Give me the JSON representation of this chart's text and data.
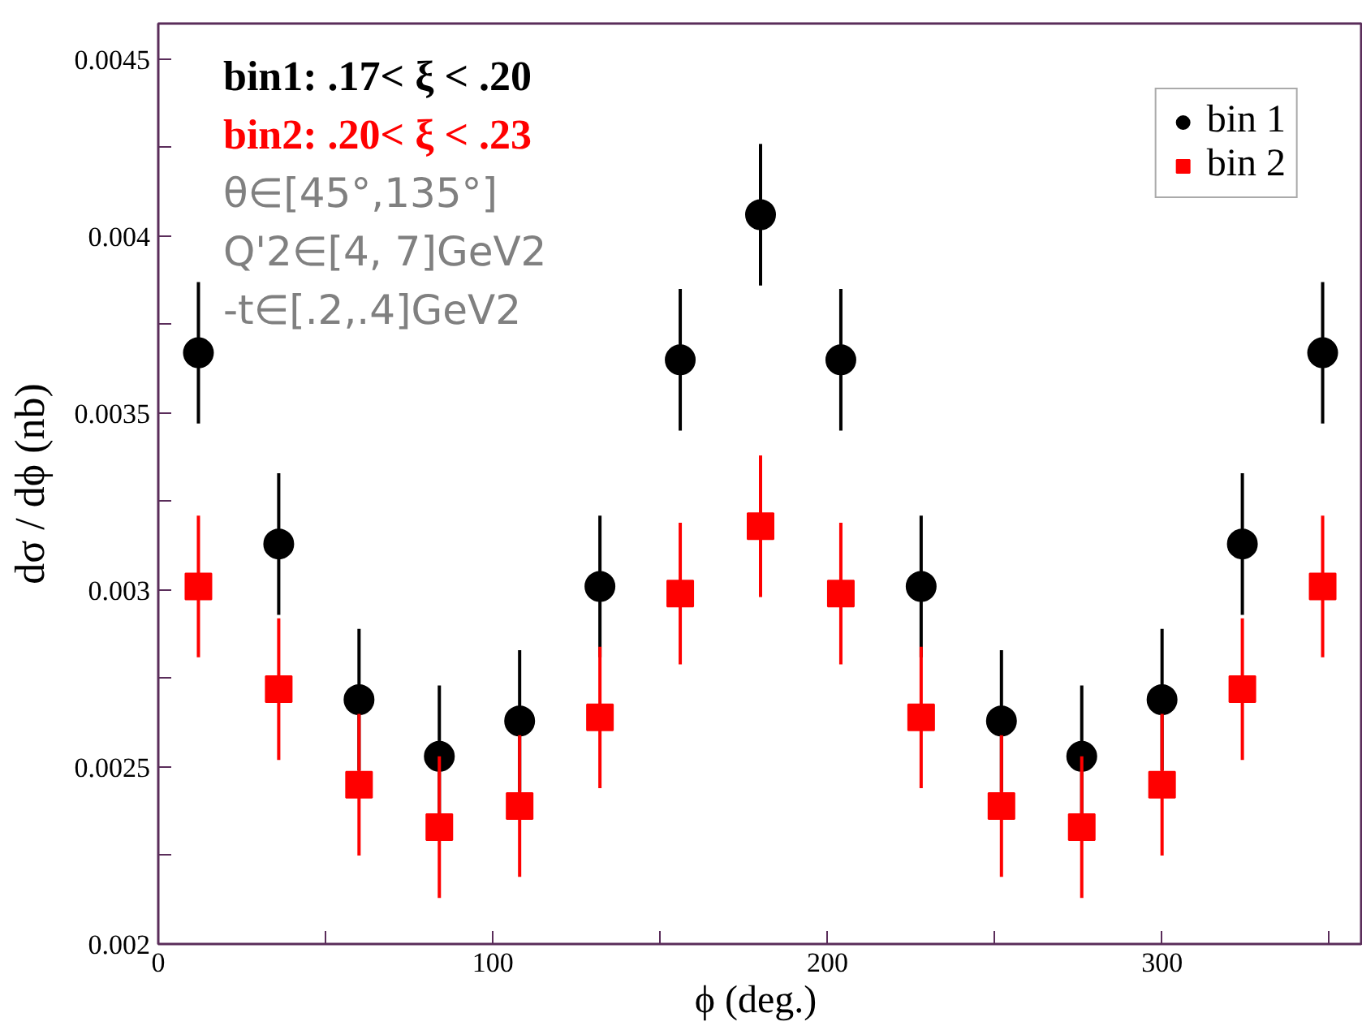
{
  "chart_data": {
    "type": "scatter",
    "xlabel": "ϕ  (deg.)",
    "ylabel": "dσ / dϕ (nb)",
    "x": [
      12,
      36,
      60,
      84,
      108,
      132,
      156,
      180,
      204,
      228,
      252,
      276,
      300,
      324,
      348
    ],
    "series": [
      {
        "name": "bin 1",
        "color": "#000000",
        "marker": "circle",
        "values": [
          0.00367,
          0.00313,
          0.00269,
          0.00253,
          0.00263,
          0.00301,
          0.00365,
          0.00406,
          0.00365,
          0.00301,
          0.00263,
          0.00253,
          0.00269,
          0.00313,
          0.00367
        ],
        "errors": [
          0.0002,
          0.0002,
          0.0002,
          0.0002,
          0.0002,
          0.0002,
          0.0002,
          0.0002,
          0.0002,
          0.0002,
          0.0002,
          0.0002,
          0.0002,
          0.0002,
          0.0002
        ]
      },
      {
        "name": "bin 2",
        "color": "#ff0000",
        "marker": "square",
        "values": [
          0.00301,
          0.00272,
          0.00245,
          0.00233,
          0.00239,
          0.00264,
          0.00299,
          0.00318,
          0.00299,
          0.00264,
          0.00239,
          0.00233,
          0.00245,
          0.00272,
          0.00301
        ],
        "errors": [
          0.0002,
          0.0002,
          0.0002,
          0.0002,
          0.0002,
          0.0002,
          0.0002,
          0.0002,
          0.0002,
          0.0002,
          0.0002,
          0.0002,
          0.0002,
          0.0002,
          0.0002
        ]
      }
    ],
    "annotations": [
      "bin1: .17< ξ < .20",
      "bin2: .20< ξ < .23",
      "θ∈[45°,135°]",
      "Q'2∈[4, 7]GeV2",
      "-t∈[.2,.4]GeV2"
    ],
    "xlim": [
      0,
      360
    ],
    "xticks": [
      0,
      {
        "value": 50,
        "label": null
      },
      100,
      {
        "value": 150,
        "label": null
      },
      200,
      {
        "value": 250,
        "label": null
      },
      300,
      {
        "value": 350,
        "label": null
      }
    ],
    "ylim": [
      0.002,
      0.0046
    ],
    "yticks": [
      0.002,
      {
        "value": 0.00225,
        "label": null
      },
      0.0025,
      {
        "value": 0.00275,
        "label": null
      },
      0.003,
      {
        "value": 0.00325,
        "label": null
      },
      0.0035,
      {
        "value": 0.00375,
        "label": null
      },
      0.004,
      {
        "value": 0.00425,
        "label": null
      },
      0.0045
    ],
    "grid": false,
    "legend": "top right"
  }
}
